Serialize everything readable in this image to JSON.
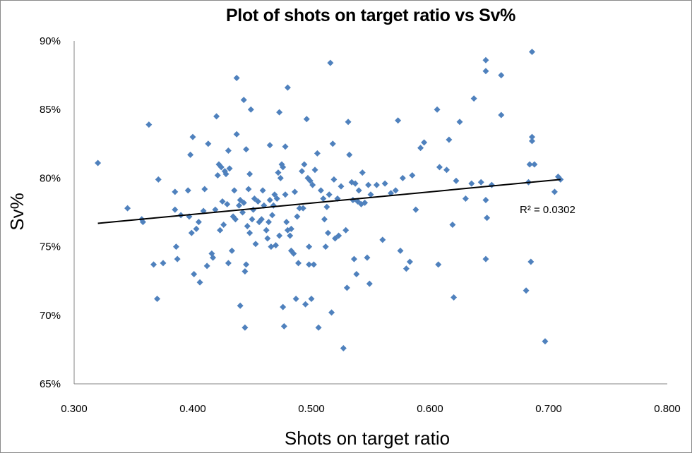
{
  "chart_data": {
    "type": "scatter",
    "title": "Plot of shots on target  ratio vs Sv%",
    "xlabel": "Shots on target ratio",
    "ylabel": "Sv%",
    "xlim": [
      0.3,
      0.8
    ],
    "ylim": [
      0.65,
      0.9
    ],
    "x_ticks": [
      "0.300",
      "0.400",
      "0.500",
      "0.600",
      "0.700",
      "0.800"
    ],
    "y_ticks": [
      "65%",
      "70%",
      "75%",
      "80%",
      "85%",
      "90%"
    ],
    "grid": false,
    "legend": null,
    "marker_color": "#4F81BD",
    "trendline": {
      "type": "linear",
      "x_start": 0.32,
      "y_start": 0.767,
      "x_end": 0.71,
      "y_end": 0.799,
      "label": "R² = 0.0302"
    },
    "points": [
      [
        0.32,
        0.811
      ],
      [
        0.345,
        0.778
      ],
      [
        0.357,
        0.77
      ],
      [
        0.358,
        0.768
      ],
      [
        0.363,
        0.839
      ],
      [
        0.367,
        0.737
      ],
      [
        0.37,
        0.712
      ],
      [
        0.371,
        0.799
      ],
      [
        0.375,
        0.738
      ],
      [
        0.385,
        0.777
      ],
      [
        0.385,
        0.79
      ],
      [
        0.386,
        0.75
      ],
      [
        0.387,
        0.741
      ],
      [
        0.39,
        0.773
      ],
      [
        0.396,
        0.791
      ],
      [
        0.397,
        0.772
      ],
      [
        0.398,
        0.817
      ],
      [
        0.399,
        0.76
      ],
      [
        0.4,
        0.83
      ],
      [
        0.401,
        0.73
      ],
      [
        0.403,
        0.763
      ],
      [
        0.405,
        0.768
      ],
      [
        0.406,
        0.724
      ],
      [
        0.409,
        0.776
      ],
      [
        0.41,
        0.792
      ],
      [
        0.412,
        0.736
      ],
      [
        0.413,
        0.825
      ],
      [
        0.416,
        0.745
      ],
      [
        0.417,
        0.742
      ],
      [
        0.419,
        0.777
      ],
      [
        0.42,
        0.845
      ],
      [
        0.421,
        0.802
      ],
      [
        0.422,
        0.81
      ],
      [
        0.423,
        0.762
      ],
      [
        0.424,
        0.808
      ],
      [
        0.425,
        0.783
      ],
      [
        0.426,
        0.766
      ],
      [
        0.427,
        0.805
      ],
      [
        0.428,
        0.803
      ],
      [
        0.429,
        0.781
      ],
      [
        0.43,
        0.82
      ],
      [
        0.43,
        0.738
      ],
      [
        0.431,
        0.807
      ],
      [
        0.433,
        0.747
      ],
      [
        0.434,
        0.772
      ],
      [
        0.435,
        0.791
      ],
      [
        0.436,
        0.77
      ],
      [
        0.437,
        0.832
      ],
      [
        0.437,
        0.873
      ],
      [
        0.439,
        0.78
      ],
      [
        0.44,
        0.784
      ],
      [
        0.44,
        0.707
      ],
      [
        0.442,
        0.775
      ],
      [
        0.443,
        0.857
      ],
      [
        0.443,
        0.782
      ],
      [
        0.444,
        0.691
      ],
      [
        0.444,
        0.732
      ],
      [
        0.445,
        0.821
      ],
      [
        0.445,
        0.737
      ],
      [
        0.446,
        0.765
      ],
      [
        0.447,
        0.792
      ],
      [
        0.448,
        0.803
      ],
      [
        0.448,
        0.76
      ],
      [
        0.449,
        0.85
      ],
      [
        0.45,
        0.77
      ],
      [
        0.451,
        0.777
      ],
      [
        0.452,
        0.785
      ],
      [
        0.453,
        0.752
      ],
      [
        0.455,
        0.783
      ],
      [
        0.456,
        0.768
      ],
      [
        0.458,
        0.77
      ],
      [
        0.459,
        0.791
      ],
      [
        0.46,
        0.78
      ],
      [
        0.462,
        0.762
      ],
      [
        0.463,
        0.756
      ],
      [
        0.464,
        0.768
      ],
      [
        0.465,
        0.824
      ],
      [
        0.465,
        0.784
      ],
      [
        0.466,
        0.75
      ],
      [
        0.467,
        0.773
      ],
      [
        0.468,
        0.78
      ],
      [
        0.469,
        0.788
      ],
      [
        0.47,
        0.751
      ],
      [
        0.471,
        0.785
      ],
      [
        0.472,
        0.804
      ],
      [
        0.473,
        0.848
      ],
      [
        0.473,
        0.758
      ],
      [
        0.474,
        0.8
      ],
      [
        0.475,
        0.81
      ],
      [
        0.476,
        0.808
      ],
      [
        0.476,
        0.706
      ],
      [
        0.477,
        0.692
      ],
      [
        0.478,
        0.823
      ],
      [
        0.478,
        0.788
      ],
      [
        0.479,
        0.768
      ],
      [
        0.48,
        0.866
      ],
      [
        0.48,
        0.762
      ],
      [
        0.482,
        0.758
      ],
      [
        0.483,
        0.763
      ],
      [
        0.483,
        0.747
      ],
      [
        0.485,
        0.745
      ],
      [
        0.486,
        0.79
      ],
      [
        0.487,
        0.712
      ],
      [
        0.488,
        0.772
      ],
      [
        0.489,
        0.738
      ],
      [
        0.49,
        0.778
      ],
      [
        0.492,
        0.805
      ],
      [
        0.493,
        0.778
      ],
      [
        0.494,
        0.81
      ],
      [
        0.495,
        0.708
      ],
      [
        0.496,
        0.843
      ],
      [
        0.497,
        0.8
      ],
      [
        0.498,
        0.737
      ],
      [
        0.498,
        0.75
      ],
      [
        0.499,
        0.798
      ],
      [
        0.5,
        0.712
      ],
      [
        0.501,
        0.795
      ],
      [
        0.502,
        0.737
      ],
      [
        0.503,
        0.806
      ],
      [
        0.505,
        0.818
      ],
      [
        0.506,
        0.691
      ],
      [
        0.508,
        0.791
      ],
      [
        0.51,
        0.785
      ],
      [
        0.511,
        0.77
      ],
      [
        0.512,
        0.75
      ],
      [
        0.513,
        0.779
      ],
      [
        0.514,
        0.76
      ],
      [
        0.515,
        0.788
      ],
      [
        0.516,
        0.884
      ],
      [
        0.517,
        0.702
      ],
      [
        0.518,
        0.825
      ],
      [
        0.519,
        0.799
      ],
      [
        0.52,
        0.756
      ],
      [
        0.522,
        0.785
      ],
      [
        0.523,
        0.758
      ],
      [
        0.525,
        0.794
      ],
      [
        0.527,
        0.676
      ],
      [
        0.529,
        0.762
      ],
      [
        0.53,
        0.72
      ],
      [
        0.531,
        0.841
      ],
      [
        0.532,
        0.817
      ],
      [
        0.534,
        0.797
      ],
      [
        0.535,
        0.784
      ],
      [
        0.536,
        0.741
      ],
      [
        0.537,
        0.796
      ],
      [
        0.538,
        0.73
      ],
      [
        0.539,
        0.783
      ],
      [
        0.54,
        0.791
      ],
      [
        0.542,
        0.781
      ],
      [
        0.543,
        0.804
      ],
      [
        0.545,
        0.782
      ],
      [
        0.547,
        0.742
      ],
      [
        0.548,
        0.795
      ],
      [
        0.549,
        0.723
      ],
      [
        0.55,
        0.788
      ],
      [
        0.555,
        0.795
      ],
      [
        0.56,
        0.755
      ],
      [
        0.562,
        0.796
      ],
      [
        0.567,
        0.789
      ],
      [
        0.571,
        0.791
      ],
      [
        0.573,
        0.842
      ],
      [
        0.575,
        0.747
      ],
      [
        0.577,
        0.8
      ],
      [
        0.58,
        0.734
      ],
      [
        0.583,
        0.739
      ],
      [
        0.585,
        0.802
      ],
      [
        0.588,
        0.777
      ],
      [
        0.592,
        0.822
      ],
      [
        0.595,
        0.826
      ],
      [
        0.606,
        0.85
      ],
      [
        0.607,
        0.737
      ],
      [
        0.608,
        0.808
      ],
      [
        0.614,
        0.806
      ],
      [
        0.616,
        0.828
      ],
      [
        0.619,
        0.766
      ],
      [
        0.62,
        0.713
      ],
      [
        0.622,
        0.798
      ],
      [
        0.625,
        0.841
      ],
      [
        0.63,
        0.785
      ],
      [
        0.635,
        0.796
      ],
      [
        0.637,
        0.858
      ],
      [
        0.643,
        0.797
      ],
      [
        0.647,
        0.741
      ],
      [
        0.647,
        0.784
      ],
      [
        0.648,
        0.771
      ],
      [
        0.647,
        0.886
      ],
      [
        0.647,
        0.878
      ],
      [
        0.652,
        0.795
      ],
      [
        0.66,
        0.846
      ],
      [
        0.66,
        0.875
      ],
      [
        0.681,
        0.718
      ],
      [
        0.683,
        0.797
      ],
      [
        0.684,
        0.81
      ],
      [
        0.685,
        0.739
      ],
      [
        0.686,
        0.892
      ],
      [
        0.686,
        0.83
      ],
      [
        0.686,
        0.827
      ],
      [
        0.688,
        0.81
      ],
      [
        0.697,
        0.681
      ],
      [
        0.705,
        0.79
      ],
      [
        0.708,
        0.801
      ],
      [
        0.71,
        0.799
      ]
    ]
  }
}
